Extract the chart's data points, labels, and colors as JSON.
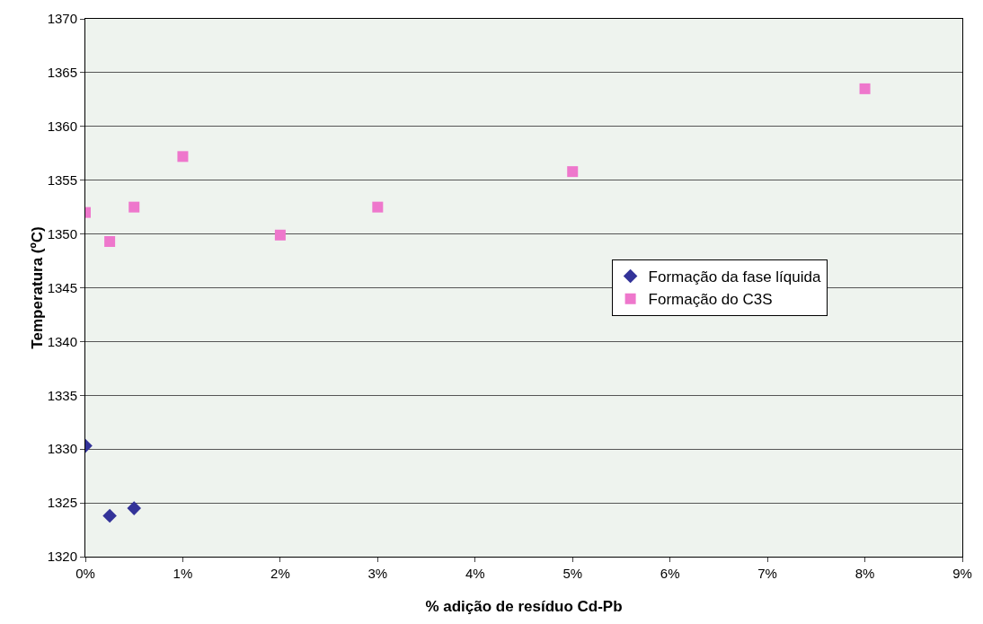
{
  "chart_data": {
    "type": "scatter",
    "xlabel": "% adição de resíduo Cd-Pb",
    "ylabel": "Temperatura (ºC)",
    "xlim": [
      0,
      9
    ],
    "xticks": [
      {
        "value": 0,
        "label": "0%"
      },
      {
        "value": 1,
        "label": "1%"
      },
      {
        "value": 2,
        "label": "2%"
      },
      {
        "value": 3,
        "label": "3%"
      },
      {
        "value": 4,
        "label": "4%"
      },
      {
        "value": 5,
        "label": "5%"
      },
      {
        "value": 6,
        "label": "6%"
      },
      {
        "value": 7,
        "label": "7%"
      },
      {
        "value": 8,
        "label": "8%"
      },
      {
        "value": 9,
        "label": "9%"
      }
    ],
    "ylim": [
      1320,
      1370
    ],
    "yticks": [
      1320,
      1325,
      1330,
      1335,
      1340,
      1345,
      1350,
      1355,
      1360,
      1365,
      1370
    ],
    "grid": "y",
    "legend": "right",
    "series": [
      {
        "name": "Formação da fase líquida",
        "color": "#333399",
        "marker": "diamond",
        "x": [
          0,
          0.25,
          0.5
        ],
        "values": [
          1330.3,
          1323.8,
          1324.5
        ]
      },
      {
        "name": "Formação do C3S",
        "color": "#ee77cc",
        "marker": "square",
        "x": [
          0,
          0.25,
          0.5,
          1,
          2,
          3,
          5,
          8
        ],
        "values": [
          1352,
          1349.3,
          1352.5,
          1357.2,
          1349.9,
          1352.5,
          1355.8,
          1363.5
        ]
      }
    ]
  }
}
